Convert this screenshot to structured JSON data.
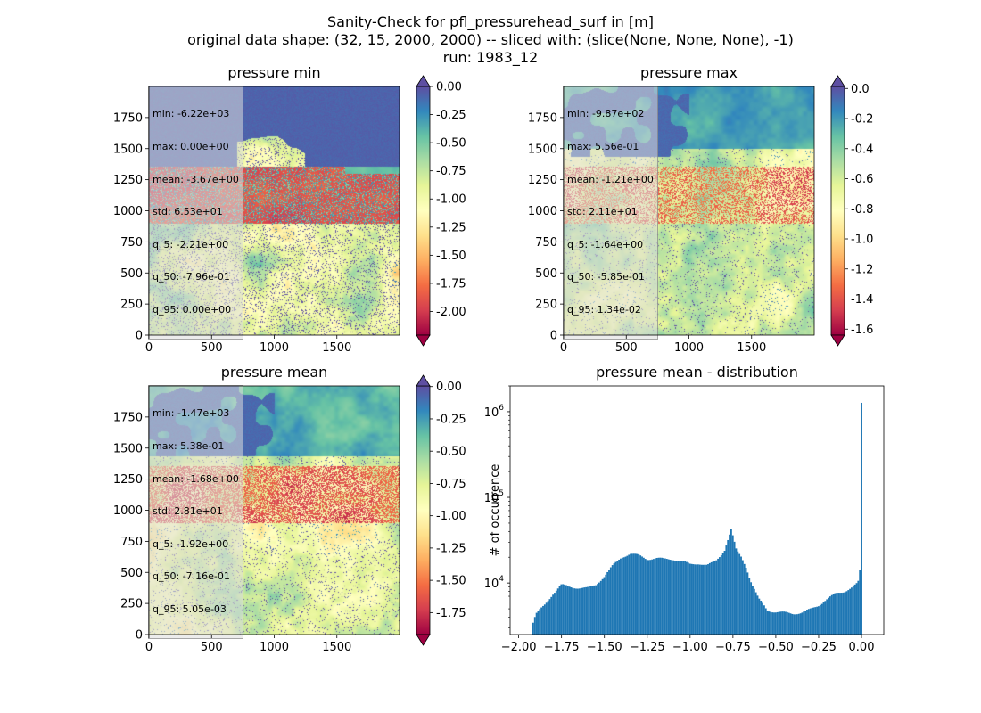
{
  "figure": {
    "title_lines": [
      "Sanity-Check for pfl_pressurehead_surf in [m]",
      "original data shape: (32, 15, 2000, 2000) -- sliced with: (slice(None, None, None), -1)",
      "run: 1983_12"
    ]
  },
  "chart_data": [
    {
      "type": "heatmap",
      "title": "pressure min",
      "xticks": [
        "0",
        "500",
        "1000",
        "1500"
      ],
      "yticks": [
        "0",
        "250",
        "500",
        "750",
        "1000",
        "1250",
        "1500",
        "1750"
      ],
      "xlim": [
        0,
        2000
      ],
      "ylim": [
        0,
        2000
      ],
      "colorbar": {
        "vmin": -2.21,
        "vmax": 0.0,
        "ticks": [
          "0.00",
          "-0.25",
          "-0.50",
          "-0.75",
          "-1.00",
          "-1.25",
          "-1.50",
          "-1.75",
          "-2.00"
        ],
        "extend": "both"
      },
      "stats": [
        "min: -6.22e+03",
        "max: 0.00e+00",
        "mean: -3.67e+00",
        "std: 6.53e+01",
        "q_5: -2.21e+00",
        "q_50: -7.96e-01",
        "q_95: 0.00e+00"
      ]
    },
    {
      "type": "heatmap",
      "title": "pressure max",
      "xticks": [
        "0",
        "500",
        "1000",
        "1500"
      ],
      "yticks": [
        "0",
        "250",
        "500",
        "750",
        "1000",
        "1250",
        "1500",
        "1750"
      ],
      "xlim": [
        0,
        2000
      ],
      "ylim": [
        0,
        2000
      ],
      "colorbar": {
        "vmin": -1.64,
        "vmax": 0.0134,
        "ticks": [
          "0.0",
          "-0.2",
          "-0.4",
          "-0.6",
          "-0.8",
          "-1.0",
          "-1.2",
          "-1.4",
          "-1.6"
        ],
        "extend": "both"
      },
      "stats": [
        "min: -9.87e+02",
        "max: 5.56e-01",
        "mean: -1.21e+00",
        "std: 2.11e+01",
        "q_5: -1.64e+00",
        "q_50: -5.85e-01",
        "q_95: 1.34e-02"
      ]
    },
    {
      "type": "heatmap",
      "title": "pressure mean",
      "xticks": [
        "0",
        "500",
        "1000",
        "1500"
      ],
      "yticks": [
        "0",
        "250",
        "500",
        "750",
        "1000",
        "1250",
        "1500",
        "1750"
      ],
      "xlim": [
        0,
        2000
      ],
      "ylim": [
        0,
        2000
      ],
      "colorbar": {
        "vmin": -1.92,
        "vmax": 0.00505,
        "ticks": [
          "0.00",
          "-0.25",
          "-0.50",
          "-0.75",
          "-1.00",
          "-1.25",
          "-1.50",
          "-1.75"
        ],
        "extend": "both"
      },
      "stats": [
        "min: -1.47e+03",
        "max: 5.38e-01",
        "mean: -1.68e+00",
        "std: 2.81e+01",
        "q_5: -1.92e+00",
        "q_50: -7.16e-01",
        "q_95: 5.05e-03"
      ]
    },
    {
      "type": "bar",
      "title": "pressure mean - distribution",
      "ylabel": "# of occurrence",
      "xticks": [
        "−2.00",
        "−1.75",
        "−1.50",
        "−1.25",
        "−1.00",
        "−0.75",
        "−0.50",
        "−0.25",
        "0.00"
      ],
      "xlim": [
        -2.05,
        0.13
      ],
      "yscale": "log",
      "ylim": [
        2500,
        2000000
      ],
      "yticks": [
        "10^4",
        "10^5",
        "10^6"
      ],
      "bar_color": "#1f77b4",
      "bins": {
        "start": -1.92,
        "end": 0.005,
        "count": 200
      },
      "profile": [
        [
          -1.92,
          3200
        ],
        [
          -1.9,
          4300
        ],
        [
          -1.85,
          5500
        ],
        [
          -1.8,
          7500
        ],
        [
          -1.75,
          9500
        ],
        [
          -1.7,
          9000
        ],
        [
          -1.65,
          8800
        ],
        [
          -1.6,
          8700
        ],
        [
          -1.55,
          9500
        ],
        [
          -1.5,
          12000
        ],
        [
          -1.45,
          16000
        ],
        [
          -1.4,
          20000
        ],
        [
          -1.35,
          22000
        ],
        [
          -1.3,
          21000
        ],
        [
          -1.25,
          19000
        ],
        [
          -1.2,
          19500
        ],
        [
          -1.15,
          19000
        ],
        [
          -1.1,
          19000
        ],
        [
          -1.05,
          18000
        ],
        [
          -1.0,
          16500
        ],
        [
          -0.95,
          17000
        ],
        [
          -0.9,
          16000
        ],
        [
          -0.85,
          18000
        ],
        [
          -0.8,
          24000
        ],
        [
          -0.76,
          42000
        ],
        [
          -0.73,
          24000
        ],
        [
          -0.7,
          20000
        ],
        [
          -0.67,
          15000
        ],
        [
          -0.65,
          11000
        ],
        [
          -0.62,
          8000
        ],
        [
          -0.6,
          6500
        ],
        [
          -0.57,
          5500
        ],
        [
          -0.55,
          4800
        ],
        [
          -0.5,
          4600
        ],
        [
          -0.45,
          4500
        ],
        [
          -0.4,
          4400
        ],
        [
          -0.35,
          4500
        ],
        [
          -0.3,
          4900
        ],
        [
          -0.25,
          5500
        ],
        [
          -0.2,
          6500
        ],
        [
          -0.15,
          7500
        ],
        [
          -0.1,
          8000
        ],
        [
          -0.05,
          9000
        ],
        [
          -0.02,
          10000
        ],
        [
          -0.005,
          16000
        ],
        [
          0.0,
          1250000
        ]
      ]
    }
  ]
}
